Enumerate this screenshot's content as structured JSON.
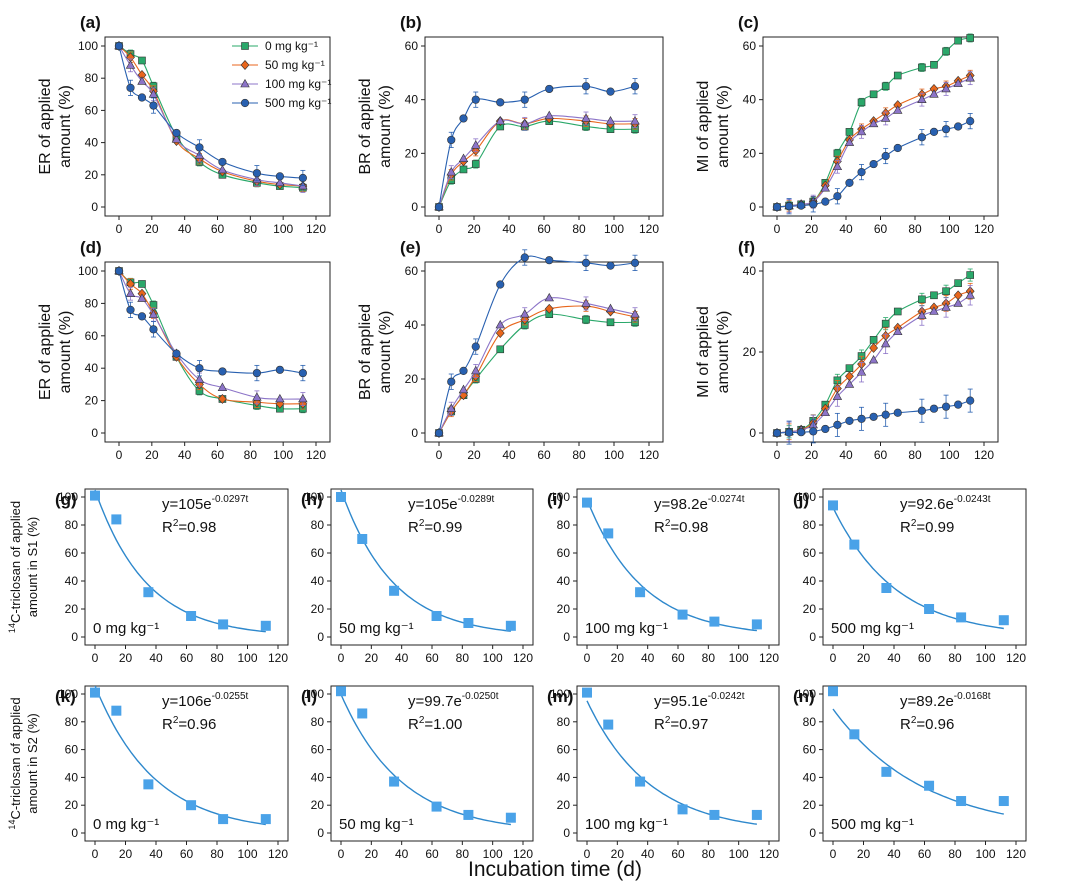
{
  "chart_data": {
    "type": "multi-panel",
    "x_label": "Incubation time (d)",
    "legend": {
      "entries": [
        {
          "label": "0 mg kg⁻¹",
          "color": "#2aa86a",
          "marker": "square"
        },
        {
          "label": "50 mg kg⁻¹",
          "color": "#e8661c",
          "marker": "diamond"
        },
        {
          "label": "100 mg kg⁻¹",
          "color": "#8c74c8",
          "marker": "triangle"
        },
        {
          "label": "500 mg kg⁻¹",
          "color": "#2860b0",
          "marker": "circle"
        }
      ],
      "placement": "top-right of panel (a)"
    },
    "x_ticks": [
      "0",
      "20",
      "40",
      "60",
      "80",
      "100",
      "120"
    ],
    "panels": [
      {
        "id": "a",
        "label": "(a)",
        "ylabel": [
          "ER of applied",
          "amount (%)"
        ],
        "ylim": [
          0,
          100
        ],
        "yticks": [
          "0",
          "20",
          "40",
          "60",
          "80",
          "100"
        ],
        "x": [
          0,
          7,
          14,
          21,
          35,
          49,
          63,
          84,
          98,
          112
        ],
        "series": [
          {
            "name": "0 mg kg⁻¹",
            "values": [
              100,
              95,
              91,
              75,
              44,
              28,
              20,
              15,
              13,
              12
            ]
          },
          {
            "name": "50 mg kg⁻¹",
            "values": [
              100,
              93,
              82,
              72,
              41,
              30,
              22,
              16,
              14,
              13
            ]
          },
          {
            "name": "100 mg kg⁻¹",
            "values": [
              100,
              88,
              78,
              70,
              42,
              32,
              23,
              17,
              15,
              13
            ]
          },
          {
            "name": "500 mg kg⁻¹",
            "values": [
              100,
              74,
              68,
              63,
              46,
              37,
              28,
              21,
              19,
              18
            ]
          }
        ]
      },
      {
        "id": "b",
        "label": "(b)",
        "ylabel": [
          "BR of applied",
          "amount (%)"
        ],
        "ylim": [
          0,
          60
        ],
        "yticks": [
          "0",
          "20",
          "40",
          "60"
        ],
        "x": [
          0,
          7,
          14,
          21,
          35,
          49,
          63,
          84,
          98,
          112
        ],
        "series": [
          {
            "name": "0 mg kg⁻¹",
            "values": [
              0,
              10,
              14,
              16,
              30,
              30,
              32,
              30,
              29,
              29
            ]
          },
          {
            "name": "50 mg kg⁻¹",
            "values": [
              0,
              12,
              17,
              21,
              32,
              31,
              33,
              32,
              31,
              31
            ]
          },
          {
            "name": "100 mg kg⁻¹",
            "values": [
              0,
              13,
              18,
              23,
              32,
              31,
              34,
              33,
              32,
              32
            ]
          },
          {
            "name": "500 mg kg⁻¹",
            "values": [
              0,
              25,
              33,
              40,
              39,
              40,
              44,
              45,
              43,
              45
            ]
          }
        ]
      },
      {
        "id": "c",
        "label": "(c)",
        "ylabel": [
          "MI of applied",
          "amount (%)"
        ],
        "ylim": [
          0,
          60
        ],
        "yticks": [
          "0",
          "20",
          "40",
          "60"
        ],
        "x": [
          0,
          7,
          14,
          21,
          28,
          35,
          42,
          49,
          56,
          63,
          70,
          84,
          91,
          98,
          105,
          112
        ],
        "series": [
          {
            "name": "0 mg kg⁻¹",
            "values": [
              0,
              0.5,
              1,
              2,
              9,
              20,
              28,
              39,
              42,
              45,
              49,
              52,
              53,
              58,
              62,
              63
            ]
          },
          {
            "name": "50 mg kg⁻¹",
            "values": [
              0,
              0.4,
              1,
              2,
              8,
              17,
              25,
              29,
              32,
              35,
              38,
              42,
              44,
              45,
              47,
              49
            ]
          },
          {
            "name": "100 mg kg⁻¹",
            "values": [
              0,
              0.4,
              1,
              2,
              7,
              15,
              24,
              28,
              31,
              33,
              36,
              40,
              42,
              44,
              46,
              48
            ]
          },
          {
            "name": "500 mg kg⁻¹",
            "values": [
              0,
              0.3,
              0.5,
              1,
              2,
              4,
              9,
              13,
              16,
              19,
              22,
              26,
              28,
              29,
              30,
              32
            ]
          }
        ]
      },
      {
        "id": "d",
        "label": "(d)",
        "ylabel": [
          "ER of applied",
          "amount (%)"
        ],
        "ylim": [
          0,
          100
        ],
        "yticks": [
          "0",
          "20",
          "40",
          "60",
          "80",
          "100"
        ],
        "x": [
          0,
          7,
          14,
          21,
          35,
          49,
          63,
          84,
          98,
          112
        ],
        "series": [
          {
            "name": "0 mg kg⁻¹",
            "values": [
              100,
              93,
              92,
              79,
              47,
              26,
              21,
              17,
              15,
              15
            ]
          },
          {
            "name": "50 mg kg⁻¹",
            "values": [
              100,
              92,
              86,
              74,
              47,
              30,
              21,
              19,
              18,
              18
            ]
          },
          {
            "name": "100 mg kg⁻¹",
            "values": [
              100,
              86,
              83,
              73,
              49,
              33,
              28,
              22,
              21,
              21
            ]
          },
          {
            "name": "500 mg kg⁻¹",
            "values": [
              100,
              76,
              72,
              64,
              49,
              40,
              38,
              37,
              39,
              37
            ]
          }
        ]
      },
      {
        "id": "e",
        "label": "(e)",
        "ylabel": [
          "BR of applied",
          "amount (%)"
        ],
        "ylim": [
          0,
          60
        ],
        "yticks": [
          "0",
          "20",
          "40",
          "60"
        ],
        "x": [
          0,
          7,
          14,
          21,
          35,
          49,
          63,
          84,
          98,
          112
        ],
        "series": [
          {
            "name": "0 mg kg⁻¹",
            "values": [
              0,
              8,
              14,
              20,
              31,
              40,
              44,
              42,
              41,
              41
            ]
          },
          {
            "name": "50 mg kg⁻¹",
            "values": [
              0,
              8,
              14,
              21,
              37,
              42,
              46,
              47,
              45,
              43
            ]
          },
          {
            "name": "100 mg kg⁻¹",
            "values": [
              0,
              9,
              16,
              23,
              40,
              44,
              50,
              48,
              46,
              44
            ]
          },
          {
            "name": "500 mg kg⁻¹",
            "values": [
              0,
              19,
              23,
              32,
              55,
              65,
              64,
              63,
              62,
              63
            ]
          }
        ]
      },
      {
        "id": "f",
        "label": "(f)",
        "ylabel": [
          "MI of applied",
          "amount (%)"
        ],
        "ylim": [
          0,
          40
        ],
        "yticks": [
          "0",
          "20",
          "40"
        ],
        "x": [
          0,
          7,
          14,
          21,
          28,
          35,
          42,
          49,
          56,
          63,
          70,
          84,
          91,
          98,
          105,
          112
        ],
        "series": [
          {
            "name": "0 mg kg⁻¹",
            "values": [
              0,
              0.3,
              0.8,
              3,
              7,
              13,
              16,
              19,
              23,
              27,
              30,
              33,
              34,
              35,
              37,
              39
            ]
          },
          {
            "name": "50 mg kg⁻¹",
            "values": [
              0,
              0.3,
              0.8,
              2.5,
              6,
              11,
              14,
              17,
              21,
              24,
              26,
              30,
              31,
              32,
              34,
              35
            ]
          },
          {
            "name": "100 mg kg⁻¹",
            "values": [
              0,
              0.3,
              0.7,
              2,
              5,
              9,
              12,
              15,
              18,
              22,
              25,
              29,
              30,
              31,
              32,
              34
            ]
          },
          {
            "name": "500 mg kg⁻¹",
            "values": [
              0,
              0.1,
              0.2,
              0.4,
              1,
              2,
              3,
              3.5,
              4,
              4.5,
              5,
              5.5,
              6,
              6.5,
              7,
              8
            ]
          }
        ]
      }
    ],
    "fit_panels": [
      {
        "id": "g",
        "label": "(g)",
        "row": "S1",
        "dose": "0 mg kg⁻¹",
        "x": [
          0,
          14,
          35,
          63,
          84,
          112
        ],
        "values": [
          101,
          84,
          32,
          15,
          9,
          8
        ],
        "fit": {
          "a": 105,
          "k": 0.0297
        },
        "eq_prefix": "y=105e",
        "eq_exp": "-0.0297t",
        "r2": "=0.98"
      },
      {
        "id": "h",
        "label": "(h)",
        "row": "S1",
        "dose": "50 mg kg⁻¹",
        "x": [
          0,
          14,
          35,
          63,
          84,
          112
        ],
        "values": [
          100,
          70,
          33,
          15,
          10,
          8
        ],
        "fit": {
          "a": 105,
          "k": 0.0289
        },
        "eq_prefix": "y=105e",
        "eq_exp": "-0.0289t",
        "r2": "=0.99"
      },
      {
        "id": "i",
        "label": "(i)",
        "row": "S1",
        "dose": "100 mg kg⁻¹",
        "x": [
          0,
          14,
          35,
          63,
          84,
          112
        ],
        "values": [
          96,
          74,
          32,
          16,
          11,
          9
        ],
        "fit": {
          "a": 98.2,
          "k": 0.0274
        },
        "eq_prefix": "y=98.2e",
        "eq_exp": "-0.0274t",
        "r2": "=0.98"
      },
      {
        "id": "j",
        "label": "(j)",
        "row": "S1",
        "dose": "500 mg kg⁻¹",
        "x": [
          0,
          14,
          35,
          63,
          84,
          112
        ],
        "values": [
          94,
          66,
          35,
          20,
          14,
          12
        ],
        "fit": {
          "a": 92.6,
          "k": 0.0243
        },
        "eq_prefix": "y=92.6e",
        "eq_exp": "-0.0243t",
        "r2": "=0.99"
      },
      {
        "id": "k",
        "label": "(k)",
        "row": "S2",
        "dose": "0 mg kg⁻¹",
        "x": [
          0,
          14,
          35,
          63,
          84,
          112
        ],
        "values": [
          101,
          88,
          35,
          20,
          10,
          10
        ],
        "fit": {
          "a": 106,
          "k": 0.0255
        },
        "eq_prefix": "y=106e",
        "eq_exp": "-0.0255t",
        "r2": "=0.96"
      },
      {
        "id": "l",
        "label": "(l)",
        "row": "S2",
        "dose": "50 mg kg⁻¹",
        "x": [
          0,
          14,
          35,
          63,
          84,
          112
        ],
        "values": [
          102,
          86,
          37,
          19,
          13,
          11
        ],
        "fit": {
          "a": 99.7,
          "k": 0.025
        },
        "eq_prefix": "y=99.7e",
        "eq_exp": "-0.0250t",
        "r2": "=1.00"
      },
      {
        "id": "m",
        "label": "(m)",
        "row": "S2",
        "dose": "100 mg kg⁻¹",
        "x": [
          0,
          14,
          35,
          63,
          84,
          112
        ],
        "values": [
          101,
          78,
          37,
          17,
          13,
          13
        ],
        "fit": {
          "a": 95.1,
          "k": 0.0242
        },
        "eq_prefix": "y=95.1e",
        "eq_exp": "-0.0242t",
        "r2": "=0.97"
      },
      {
        "id": "n",
        "label": "(n)",
        "row": "S2",
        "dose": "500 mg kg⁻¹",
        "x": [
          0,
          14,
          35,
          63,
          84,
          112
        ],
        "values": [
          102,
          71,
          44,
          34,
          23,
          23
        ],
        "fit": {
          "a": 89.2,
          "k": 0.0168
        },
        "eq_prefix": "y=89.2e",
        "eq_exp": "-0.0168t",
        "r2": "=0.96"
      }
    ],
    "fit_ylim": [
      0,
      100
    ],
    "fit_yticks": [
      "0",
      "20",
      "40",
      "60",
      "80",
      "100"
    ],
    "fit_ylabels": {
      "S1": {
        "prefix": "14",
        "line1": "C-triclosan of applied",
        "line2": "amount in S1 (%)"
      },
      "S2": {
        "prefix": "14",
        "line1": "C-triclosan of applied",
        "line2": "amount in S2 (%)"
      }
    },
    "r2_prefix": "R",
    "r2_sup": "2",
    "fit_color": "#2e88cc",
    "marker_color": "#4aa2e8"
  }
}
